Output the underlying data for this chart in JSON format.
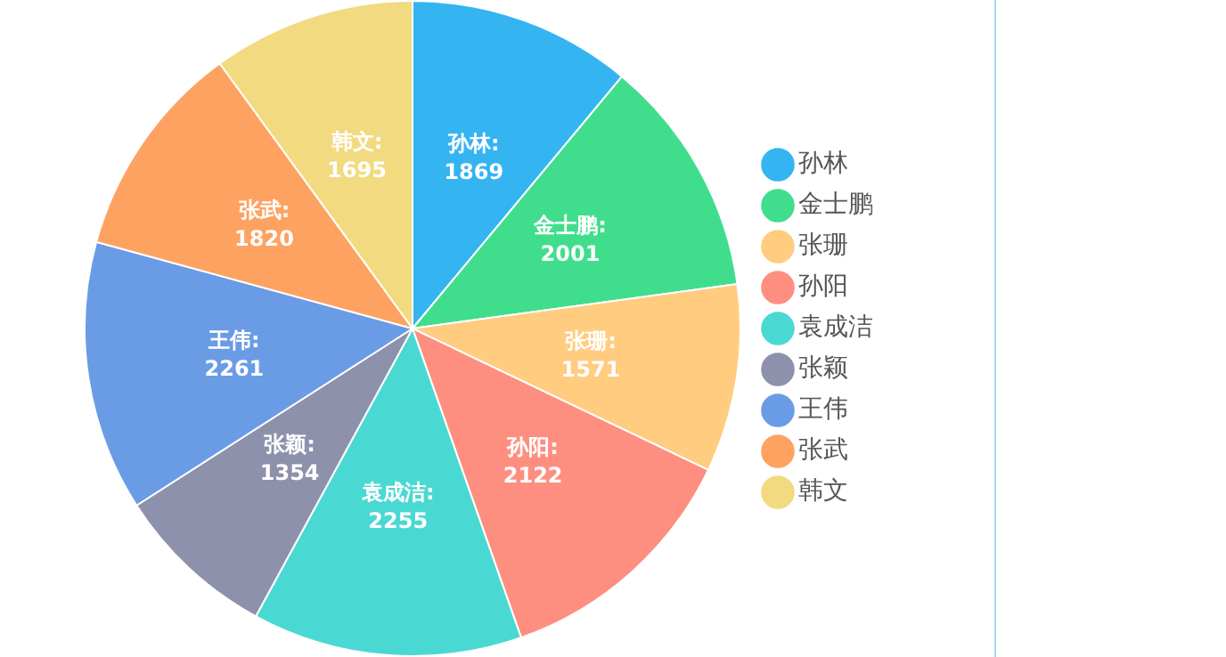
{
  "chart_data": {
    "type": "pie",
    "categories": [
      "孙林",
      "金士鹏",
      "张珊",
      "孙阳",
      "袁成洁",
      "张颖",
      "王伟",
      "张武",
      "韩文"
    ],
    "values": [
      1869,
      2001,
      1571,
      2122,
      2255,
      1354,
      2261,
      1820,
      1695
    ],
    "value_labels": [
      "孙林:\n1869",
      "金士鹏:\n2001",
      "张珊:\n1571",
      "孙阳:\n2122",
      "袁成洁:\n2255",
      "张颖:\n1354",
      "王伟:\n2261",
      "张武:\n1820",
      "韩文:\n1695"
    ],
    "colors": [
      "#35b4f2",
      "#40de8c",
      "#ffcc80",
      "#fe8f80",
      "#4ad9d2",
      "#8e91ab",
      "#6a9ce6",
      "#fea262",
      "#f2da80"
    ],
    "legend": "right"
  }
}
